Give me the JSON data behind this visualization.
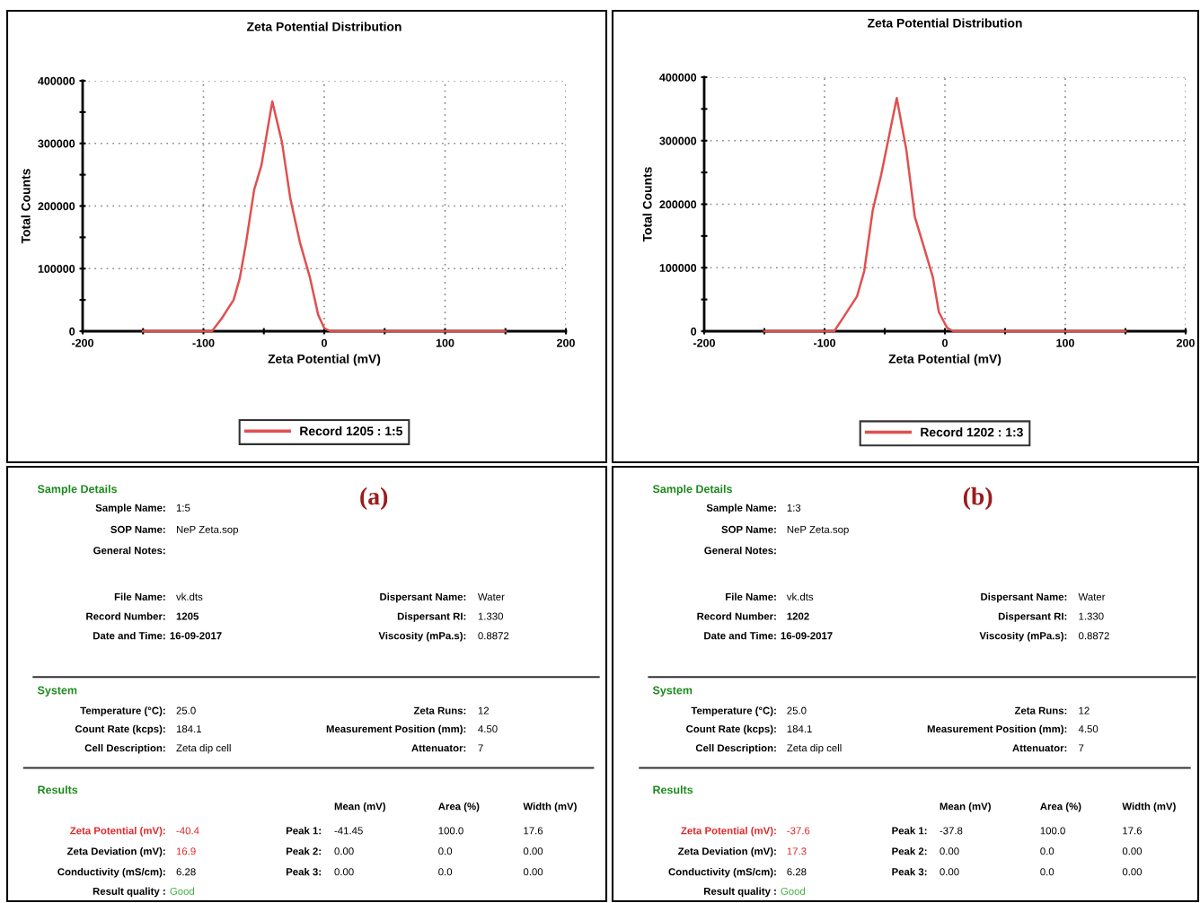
{
  "chart_data": [
    {
      "type": "line",
      "title": "Zeta Potential Distribution",
      "xlabel": "Zeta Potential (mV)",
      "ylabel": "Total Counts",
      "xlim": [
        -200,
        200
      ],
      "ylim": [
        0,
        400000
      ],
      "xticks": [
        -200,
        {
          "value": -150,
          "label": null
        },
        -100,
        {
          "value": -50,
          "label": null
        },
        0,
        {
          "value": 50,
          "label": null
        },
        100,
        {
          "value": 150,
          "label": null
        },
        200
      ],
      "yticks": [
        0,
        {
          "value": 50000,
          "label": null
        },
        100000,
        {
          "value": 150000,
          "label": null
        },
        200000,
        {
          "value": 250000,
          "label": null
        },
        300000,
        {
          "value": 350000,
          "label": null
        },
        400000
      ],
      "grid": true,
      "legend": "bottom",
      "series": [
        {
          "name": "Record 1205 : 1:5",
          "color": "#e05050",
          "x": [
            -150,
            -93,
            -85,
            -75,
            -70,
            -65,
            -58,
            -52,
            -43,
            -35,
            -28,
            -20,
            -12,
            -5,
            0,
            5,
            150
          ],
          "values": [
            0,
            0,
            20000,
            50000,
            84000,
            138000,
            226000,
            265000,
            367000,
            302000,
            211000,
            141000,
            87000,
            26000,
            5000,
            0,
            0
          ]
        }
      ]
    },
    {
      "type": "line",
      "title": "Zeta Potential Distribution",
      "xlabel": "Zeta Potential (mV)",
      "ylabel": "Total Counts",
      "xlim": [
        -200,
        200
      ],
      "ylim": [
        0,
        400000
      ],
      "xticks": [
        -200,
        {
          "value": -150,
          "label": null
        },
        -100,
        {
          "value": -50,
          "label": null
        },
        0,
        {
          "value": 50,
          "label": null
        },
        100,
        {
          "value": 150,
          "label": null
        },
        200
      ],
      "yticks": [
        0,
        {
          "value": 50000,
          "label": null
        },
        100000,
        {
          "value": 150000,
          "label": null
        },
        200000,
        {
          "value": 250000,
          "label": null
        },
        300000,
        {
          "value": 350000,
          "label": null
        },
        400000
      ],
      "grid": true,
      "legend": "bottom",
      "series": [
        {
          "name": "Record 1202 : 1:3",
          "color": "#e05050",
          "x": [
            -150,
            -92,
            -85,
            -73,
            -67,
            -60,
            -53,
            -40,
            -32,
            -25,
            -17,
            -10,
            -5,
            2,
            7,
            150
          ],
          "values": [
            0,
            0,
            20000,
            55000,
            95000,
            190000,
            246000,
            367000,
            285000,
            180000,
            130000,
            85000,
            30000,
            5000,
            0,
            0
          ]
        }
      ]
    },
    {
      "type": "other",
      "title": "(a)",
      "annotations": [
        "Sample Details",
        "Sample Name:",
        "1:5",
        "SOP Name:",
        "NeP Zeta.sop",
        "General Notes:",
        "File Name:",
        "vk.dts",
        "Record Number:",
        "1205",
        "Date and Time:",
        "16-09-2017",
        "Dispersant Name:",
        "Water",
        "Dispersant RI:",
        "1.330",
        "Viscosity (mPa.s):",
        "0.8872",
        "System",
        "Temperature (°C):",
        "25.0",
        "Count Rate (kcps):",
        "184.1",
        "Cell Description:",
        "Zeta dip cell",
        "Zeta Runs:",
        "12",
        "Measurement Position (mm):",
        "4.50",
        "Attenuator:",
        "7",
        "Results",
        "Mean (mV)",
        "Area (%)",
        "Width (mV)",
        "Zeta Potential (mV):",
        "-40.4",
        "Zeta Deviation (mV):",
        "16.9",
        "Conductivity (mS/cm):",
        "6.28",
        "Result quality :",
        "Good",
        "Peak 1:",
        "-41.45",
        "100.0",
        "17.6",
        "Peak 2:",
        "0.00",
        "0.0",
        "0.00",
        "Peak 3:",
        "0.00",
        "0.0",
        "0.00"
      ]
    },
    {
      "type": "other",
      "title": "(b)",
      "annotations": [
        "Sample Details",
        "Sample Name:",
        "1:3",
        "SOP Name:",
        "NeP Zeta.sop",
        "General Notes:",
        "File Name:",
        "vk.dts",
        "Record Number:",
        "1202",
        "Date and Time:",
        "16-09-2017",
        "Dispersant Name:",
        "Water",
        "Dispersant RI:",
        "1.330",
        "Viscosity (mPa.s):",
        "0.8872",
        "System",
        "Temperature (°C):",
        "25.0",
        "Count Rate (kcps):",
        "184.1",
        "Cell Description:",
        "Zeta dip cell",
        "Zeta Runs:",
        "12",
        "Measurement Position (mm):",
        "4.50",
        "Attenuator:",
        "7",
        "Results",
        "Mean (mV)",
        "Area (%)",
        "Width (mV)",
        "Zeta Potential (mV):",
        "-37.6",
        "Zeta Deviation (mV):",
        "17.3",
        "Conductivity (mS/cm):",
        "6.28",
        "Result quality :",
        "Good",
        "Peak 1:",
        "-37.8",
        "100.0",
        "17.6",
        "Peak 2:",
        "0.00",
        "0.0",
        "0.00",
        "Peak 3:",
        "0.00",
        "0.0",
        "0.00"
      ]
    }
  ]
}
